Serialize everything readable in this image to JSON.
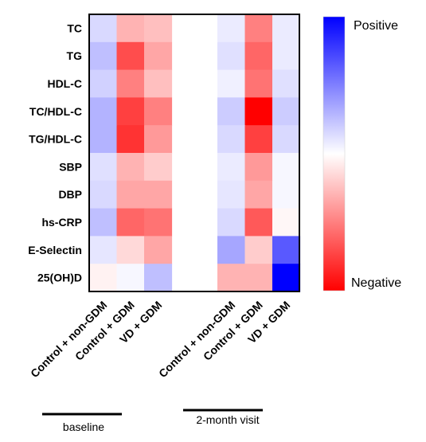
{
  "chart_data": {
    "type": "heatmap",
    "rows": [
      "TC",
      "TG",
      "HDL-C",
      "TC/HDL-C",
      "TG/HDL-C",
      "SBP",
      "DBP",
      "hs-CRP",
      "E-Selectin",
      "25(OH)D"
    ],
    "columns": [
      "Control + non-GDM",
      "Control + GDM",
      "VD + GDM",
      "Control + non-GDM",
      "Control + GDM",
      "VD + GDM"
    ],
    "groups": [
      {
        "label": "baseline",
        "columns": [
          0,
          1,
          2
        ]
      },
      {
        "label": "2-month visit",
        "columns": [
          3,
          4,
          5
        ]
      }
    ],
    "values": [
      [
        0.15,
        -0.3,
        -0.25,
        0.08,
        -0.5,
        0.08
      ],
      [
        0.25,
        -0.7,
        -0.35,
        0.12,
        -0.6,
        0.08
      ],
      [
        0.18,
        -0.5,
        -0.25,
        0.06,
        -0.55,
        0.12
      ],
      [
        0.3,
        -0.75,
        -0.5,
        0.2,
        -1.0,
        0.2
      ],
      [
        0.3,
        -0.8,
        -0.4,
        0.15,
        -0.75,
        0.15
      ],
      [
        0.12,
        -0.3,
        -0.2,
        0.08,
        -0.4,
        0.03
      ],
      [
        0.15,
        -0.35,
        -0.35,
        0.1,
        -0.35,
        0.03
      ],
      [
        0.25,
        -0.6,
        -0.55,
        0.15,
        -0.65,
        -0.03
      ],
      [
        0.1,
        -0.15,
        -0.35,
        0.35,
        -0.2,
        0.65
      ],
      [
        -0.05,
        0.03,
        0.25,
        -0.3,
        -0.3,
        1.0
      ]
    ],
    "value_range": [
      -1,
      1
    ],
    "colorbar": {
      "high_label": "Positive",
      "low_label": "Negative",
      "high_color": "#0000ff",
      "mid_color": "#ffffff",
      "low_color": "#ff0000"
    }
  }
}
